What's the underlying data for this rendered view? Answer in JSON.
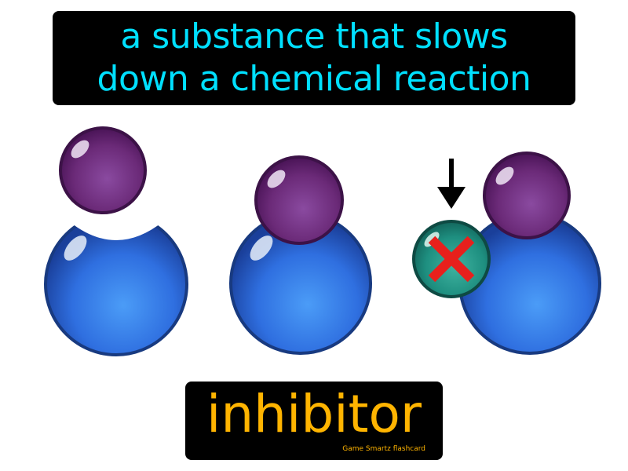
{
  "definition": {
    "line1": "a substance that slows",
    "line2": "down a chemical reaction"
  },
  "term": "inhibitor",
  "brand": "Game Smartz flashcard",
  "colors": {
    "definition_text": "#00e0ff",
    "term_text": "#ffb400",
    "enzyme": "#2f6fe0",
    "substrate": "#6b2a78",
    "inhibitor": "#1e8f80",
    "block_x": "#e8201c"
  },
  "icons": {
    "arrow": "down-arrow-icon",
    "block": "x-mark-icon"
  }
}
